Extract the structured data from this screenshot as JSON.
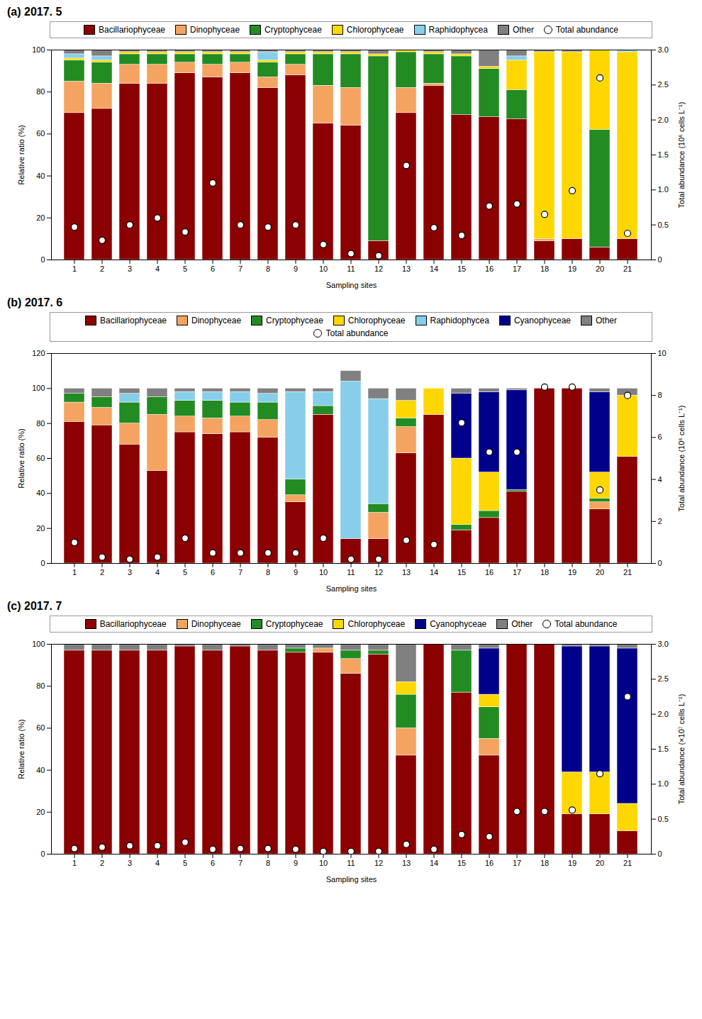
{
  "chart_data": [
    {
      "type": "bar",
      "stacked": true,
      "title": "(a) 2017. 5",
      "xlabel": "Sampling sites",
      "ylabel": "Relative ratio (%)",
      "y2label": "Total abundance (10⁶ cells L⁻¹)",
      "legend": "top",
      "categories": [
        "1",
        "2",
        "3",
        "4",
        "5",
        "6",
        "7",
        "8",
        "9",
        "10",
        "11",
        "12",
        "13",
        "14",
        "15",
        "16",
        "17",
        "18",
        "19",
        "20",
        "21"
      ],
      "ylim": [
        0,
        100
      ],
      "yticks": [
        0,
        20,
        40,
        60,
        80,
        100
      ],
      "y2lim": [
        0,
        3
      ],
      "y2ticks": [
        0,
        0.5,
        {
          "value": 1,
          "label": "1.0"
        },
        1.5,
        {
          "value": 2,
          "label": "2.0"
        },
        2.5,
        {
          "value": 3,
          "label": "3.0"
        }
      ],
      "series": [
        {
          "name": "Bacillariophyceae",
          "type": "bar",
          "color": "#8B0000",
          "values": [
            70,
            72,
            84,
            84,
            89,
            87,
            89,
            82,
            88,
            65,
            64,
            9,
            70,
            83,
            69,
            68,
            67,
            9,
            10,
            6,
            10
          ]
        },
        {
          "name": "Dinophyceae",
          "type": "bar",
          "color": "#F4A460",
          "values": [
            15,
            12,
            9,
            9,
            5,
            6,
            5,
            5,
            5,
            18,
            18,
            0,
            12,
            1,
            0,
            0,
            0,
            1,
            0,
            0,
            0
          ]
        },
        {
          "name": "Cryptophyceae",
          "type": "bar",
          "color": "#228B22",
          "values": [
            10,
            10,
            5,
            5,
            4,
            5,
            4,
            7,
            5,
            15,
            16,
            88,
            17,
            14,
            28,
            23,
            14,
            0,
            0,
            56,
            0
          ]
        },
        {
          "name": "Chlorophyceae",
          "type": "bar",
          "color": "#FFD700",
          "values": [
            1,
            1,
            1,
            1,
            1,
            1,
            1,
            1,
            1,
            1,
            1,
            1,
            1,
            1,
            1,
            1,
            14,
            89,
            89,
            38,
            89
          ]
        },
        {
          "name": "Raphidophycea",
          "type": "bar",
          "color": "#87CEEB",
          "values": [
            2,
            2,
            0,
            0,
            0,
            0,
            0,
            4,
            0,
            0,
            0,
            0,
            0,
            0,
            0,
            0,
            2,
            0,
            0,
            0,
            1
          ]
        },
        {
          "name": "Other",
          "type": "bar",
          "color": "#808080",
          "values": [
            2,
            3,
            1,
            1,
            1,
            1,
            1,
            1,
            1,
            1,
            1,
            2,
            0,
            1,
            2,
            8,
            3,
            1,
            1,
            0,
            0
          ]
        },
        {
          "name": "Total abundance",
          "type": "scatter",
          "axis": "y2",
          "marker": "o",
          "color": "#000000",
          "values": [
            0.47,
            0.28,
            0.5,
            0.6,
            0.4,
            1.1,
            0.5,
            0.47,
            0.5,
            0.22,
            0.09,
            0.06,
            1.35,
            0.46,
            0.35,
            0.77,
            0.8,
            0.65,
            0.99,
            2.6,
            0.38
          ]
        }
      ]
    },
    {
      "type": "bar",
      "stacked": true,
      "title": "(b) 2017. 6",
      "xlabel": "Sampling sites",
      "ylabel": "Relative ratio (%)",
      "y2label": "Total abundance (10⁶ cells L⁻¹)",
      "legend": "top",
      "categories": [
        "1",
        "2",
        "3",
        "4",
        "5",
        "6",
        "7",
        "8",
        "9",
        "10",
        "11",
        "12",
        "13",
        "14",
        "15",
        "16",
        "17",
        "18",
        "19",
        "20",
        "21"
      ],
      "ylim": [
        0,
        120
      ],
      "yticks": [
        0,
        20,
        40,
        60,
        80,
        100,
        120
      ],
      "y2lim": [
        0,
        10
      ],
      "y2ticks": [
        0,
        2,
        4,
        6,
        8,
        10
      ],
      "series": [
        {
          "name": "Bacillariophyceae",
          "type": "bar",
          "color": "#8B0000",
          "values": [
            81,
            79,
            68,
            53,
            75,
            74,
            75,
            72,
            35,
            85,
            14,
            14,
            63,
            85,
            19,
            26,
            41,
            100,
            100,
            31,
            61
          ]
        },
        {
          "name": "Dinophyceae",
          "type": "bar",
          "color": "#F4A460",
          "values": [
            11,
            10,
            12,
            32,
            9,
            9,
            9,
            10,
            4,
            0,
            0,
            15,
            15,
            0,
            0,
            0,
            0,
            0,
            0,
            4,
            0
          ]
        },
        {
          "name": "Cryptophyceae",
          "type": "bar",
          "color": "#228B22",
          "values": [
            5,
            6,
            12,
            10,
            9,
            10,
            8,
            10,
            9,
            5,
            0,
            5,
            5,
            0,
            3,
            4,
            1,
            0,
            0,
            2,
            0
          ]
        },
        {
          "name": "Chlorophyceae",
          "type": "bar",
          "color": "#FFD700",
          "values": [
            0,
            0,
            0,
            0,
            0,
            0,
            0,
            0,
            0,
            0,
            0,
            0,
            10,
            15,
            38,
            22,
            0,
            0,
            0,
            15,
            35
          ]
        },
        {
          "name": "Raphidophycea",
          "type": "bar",
          "color": "#87CEEB",
          "values": [
            0,
            0,
            5,
            0,
            5,
            5,
            6,
            5,
            50,
            8,
            90,
            60,
            0,
            0,
            0,
            0,
            0,
            0,
            0,
            0,
            0
          ]
        },
        {
          "name": "Cyanophyceae",
          "type": "bar",
          "color": "#00008B",
          "values": [
            0,
            0,
            0,
            0,
            0,
            0,
            0,
            0,
            0,
            0,
            0,
            0,
            0,
            0,
            37,
            46,
            57,
            0,
            0,
            46,
            0
          ]
        },
        {
          "name": "Other",
          "type": "bar",
          "color": "#808080",
          "values": [
            3,
            5,
            3,
            5,
            2,
            2,
            2,
            3,
            2,
            2,
            6,
            6,
            7,
            0,
            3,
            2,
            1,
            0,
            0,
            2,
            4
          ]
        },
        {
          "name": "Total abundance",
          "type": "scatter",
          "axis": "y2",
          "marker": "o",
          "color": "#000000",
          "values": [
            1.0,
            0.3,
            0.2,
            0.3,
            1.2,
            0.5,
            0.5,
            0.5,
            0.5,
            1.2,
            0.2,
            0.2,
            1.1,
            0.9,
            6.7,
            5.3,
            5.3,
            8.4,
            8.4,
            3.5,
            8.0
          ]
        }
      ]
    },
    {
      "type": "bar",
      "stacked": true,
      "title": "(c) 2017. 7",
      "xlabel": "Sampling sites",
      "ylabel": "Relative ratio (%)",
      "y2label": "Total abundance (×10⁷ cells L⁻¹)",
      "legend": "top",
      "categories": [
        "1",
        "2",
        "3",
        "4",
        "5",
        "6",
        "7",
        "8",
        "9",
        "10",
        "11",
        "12",
        "13",
        "14",
        "15",
        "16",
        "17",
        "18",
        "19",
        "20",
        "21"
      ],
      "ylim": [
        0,
        100
      ],
      "yticks": [
        0,
        20,
        40,
        60,
        80,
        100
      ],
      "y2lim": [
        0,
        3
      ],
      "y2ticks": [
        0,
        0.5,
        {
          "value": 1,
          "label": "1.0"
        },
        1.5,
        {
          "value": 2,
          "label": "2.0"
        },
        2.5,
        {
          "value": 3,
          "label": "3.0"
        }
      ],
      "series": [
        {
          "name": "Bacillariophyceae",
          "type": "bar",
          "color": "#8B0000",
          "values": [
            97,
            97,
            97,
            97,
            99,
            97,
            99,
            97,
            96,
            96,
            86,
            95,
            47,
            100,
            77,
            47,
            100,
            100,
            19,
            19,
            11
          ]
        },
        {
          "name": "Dinophyceae",
          "type": "bar",
          "color": "#F4A460",
          "values": [
            0,
            0,
            0,
            0,
            0,
            0,
            0,
            0,
            0,
            2,
            7,
            0,
            13,
            0,
            0,
            8,
            0,
            0,
            0,
            0,
            0
          ]
        },
        {
          "name": "Cryptophyceae",
          "type": "bar",
          "color": "#228B22",
          "values": [
            0,
            0,
            0,
            0,
            0,
            0,
            0,
            0,
            2,
            0,
            4,
            2,
            16,
            0,
            20,
            15,
            0,
            0,
            0,
            0,
            0
          ]
        },
        {
          "name": "Chlorophyceae",
          "type": "bar",
          "color": "#FFD700",
          "values": [
            0,
            0,
            0,
            0,
            0,
            0,
            0,
            0,
            0,
            0,
            0,
            0,
            6,
            0,
            0,
            6,
            0,
            0,
            20,
            20,
            13
          ]
        },
        {
          "name": "Cyanophyceae",
          "type": "bar",
          "color": "#00008B",
          "values": [
            0,
            0,
            0,
            0,
            0,
            0,
            0,
            0,
            0,
            0,
            0,
            0,
            0,
            0,
            0,
            22,
            0,
            0,
            60,
            60,
            74
          ]
        },
        {
          "name": "Other",
          "type": "bar",
          "color": "#808080",
          "values": [
            3,
            3,
            3,
            3,
            1,
            3,
            1,
            3,
            2,
            2,
            3,
            3,
            18,
            0,
            3,
            2,
            0,
            0,
            1,
            1,
            2
          ]
        },
        {
          "name": "Total abundance",
          "type": "scatter",
          "axis": "y2",
          "marker": "o",
          "color": "#000000",
          "values": [
            0.08,
            0.1,
            0.12,
            0.12,
            0.17,
            0.07,
            0.08,
            0.08,
            0.07,
            0.04,
            0.04,
            0.04,
            0.14,
            0.07,
            0.28,
            0.25,
            0.61,
            0.61,
            0.63,
            1.15,
            2.25
          ]
        }
      ]
    }
  ]
}
